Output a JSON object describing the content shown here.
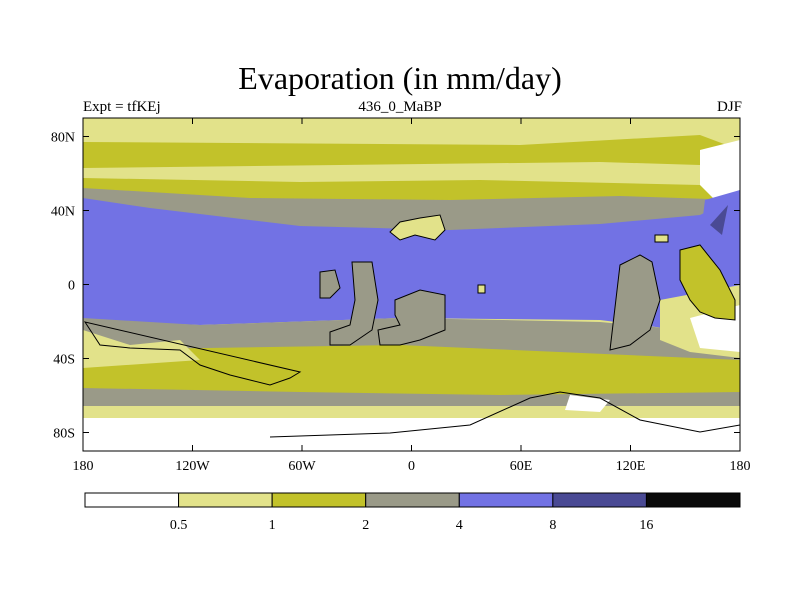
{
  "title": "Evaporation (in mm/day)",
  "subtitle_left": "Expt = tfKEj",
  "subtitle_center": "436_0_MaBP",
  "subtitle_right": "DJF",
  "map": {
    "projection": "cylindrical equidistant",
    "lon_range": [
      -180,
      180
    ],
    "lat_range": [
      -90,
      90
    ],
    "x_ticks": [
      {
        "lon": -180,
        "label": "180"
      },
      {
        "lon": -120,
        "label": "120W"
      },
      {
        "lon": -60,
        "label": "60W"
      },
      {
        "lon": 0,
        "label": "0"
      },
      {
        "lon": 60,
        "label": "60E"
      },
      {
        "lon": 120,
        "label": "120E"
      },
      {
        "lon": 180,
        "label": "180"
      }
    ],
    "y_ticks": [
      {
        "lat": 80,
        "label": "80N"
      },
      {
        "lat": 40,
        "label": "40N"
      },
      {
        "lat": 0,
        "label": "0"
      },
      {
        "lat": -40,
        "label": "40S"
      },
      {
        "lat": -80,
        "label": "80S"
      }
    ]
  },
  "colorbar": {
    "levels": [
      "0.5",
      "1",
      "2",
      "4",
      "8",
      "16"
    ],
    "colors": [
      "#ffffff",
      "#e2e28a",
      "#c2c22a",
      "#9a9a88",
      "#7272e4",
      "#4a4a94",
      "#0a0a0a"
    ]
  }
}
